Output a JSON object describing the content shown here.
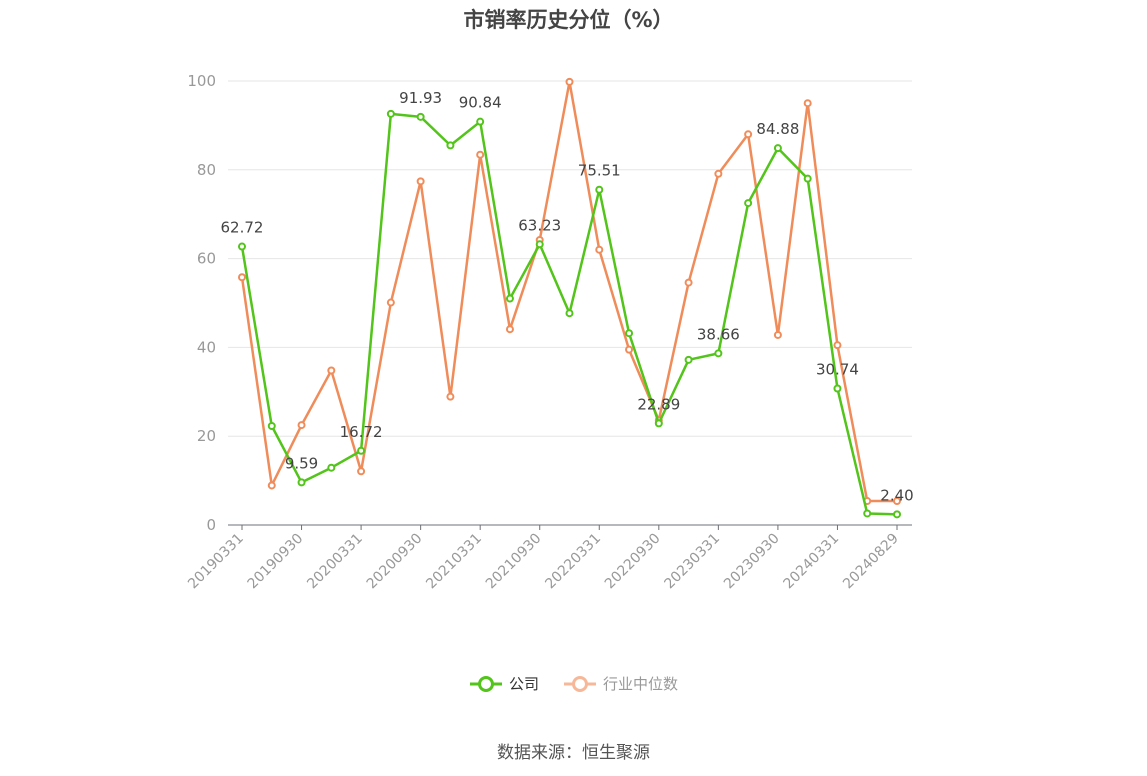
{
  "title": "市销率历史分位（%）",
  "source": "数据来源：恒生聚源",
  "colors": {
    "company": "#52c41a",
    "industry": "#f08c5a",
    "grid": "#e6e6e6",
    "axis": "#999999"
  },
  "chart_data": {
    "type": "line",
    "title": "市销率历史分位（%）",
    "ylim": [
      0,
      100
    ],
    "y_ticks": [
      0,
      20,
      40,
      60,
      80,
      100
    ],
    "grid": true,
    "legend_position": "bottom",
    "x": [
      "20190331",
      "20190630",
      "20190930",
      "20191231",
      "20200331",
      "20200630",
      "20200930",
      "20201231",
      "20210331",
      "20210630",
      "20210930",
      "20211231",
      "20220331",
      "20220630",
      "20220930",
      "20221231",
      "20230331",
      "20230630",
      "20230930",
      "20231231",
      "20240331",
      "20240630",
      "20240829"
    ],
    "x_tick_labels": [
      "20190331",
      "20190930",
      "20200331",
      "20200930",
      "20210331",
      "20210930",
      "20220331",
      "20220930",
      "20230331",
      "20230930",
      "20240331",
      "20240829"
    ],
    "series": [
      {
        "name": "公司",
        "values": [
          62.72,
          22.3,
          9.59,
          12.9,
          16.72,
          92.6,
          91.93,
          85.5,
          90.84,
          51.0,
          63.23,
          47.7,
          75.51,
          43.2,
          22.89,
          37.2,
          38.66,
          72.5,
          84.88,
          78.0,
          30.74,
          2.6,
          2.4
        ],
        "labels": {
          "0": "62.72",
          "2": "9.59",
          "4": "16.72",
          "6": "91.93",
          "8": "90.84",
          "10": "63.23",
          "12": "75.51",
          "14": "22.89",
          "16": "38.66",
          "18": "84.88",
          "20": "30.74",
          "22": "2.40"
        }
      },
      {
        "name": "行业中位数",
        "values": [
          55.8,
          8.9,
          22.5,
          34.8,
          12.1,
          50.1,
          77.4,
          28.9,
          83.4,
          44.1,
          64.2,
          99.8,
          62.0,
          39.5,
          23.6,
          54.6,
          79.1,
          88.0,
          42.8,
          95.0,
          40.5,
          5.4,
          5.4
        ]
      }
    ]
  }
}
